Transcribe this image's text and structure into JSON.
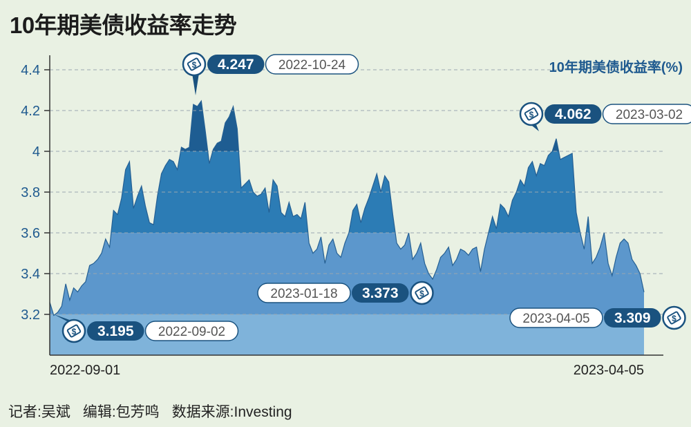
{
  "header": {
    "title": "10年期美债收益率走势"
  },
  "footer": {
    "reporter": "记者:吴斌",
    "editor": "编辑:包芳鸣",
    "source": "数据来源:Investing"
  },
  "colors": {
    "background": "#e9f1e3",
    "band_low": "#7fb3da",
    "band_mid": "#5c97cc",
    "band_high": "#2c7cb5",
    "band_top": "#1e5d92",
    "line": "#245f93",
    "axis_text": "#1f5a8f",
    "grid": "#9aa7b0",
    "badge": "#1a527f"
  },
  "chart_data": {
    "type": "area",
    "ylabel": "10年期美债收益率(%)",
    "ylim": [
      3.0,
      4.4
    ],
    "yticks": [
      3.2,
      3.4,
      3.6,
      3.8,
      4.0,
      4.2,
      4.4
    ],
    "ytick_labels": [
      "3.2",
      "3.4",
      "3.6",
      "3.8",
      "4",
      "4.2",
      "4.4"
    ],
    "x_start_label": "2022-09-01",
    "x_end_label": "2023-04-05",
    "bands": [
      3.2,
      3.6,
      4.0
    ],
    "grid": "horizontal dashed",
    "series": [
      {
        "values": [
          3.26,
          3.195,
          3.21,
          3.24,
          3.35,
          3.27,
          3.33,
          3.31,
          3.34,
          3.36,
          3.44,
          3.45,
          3.47,
          3.5,
          3.57,
          3.53,
          3.71,
          3.69,
          3.77,
          3.91,
          3.95,
          3.72,
          3.78,
          3.83,
          3.73,
          3.65,
          3.64,
          3.78,
          3.89,
          3.93,
          3.96,
          3.95,
          3.91,
          4.02,
          4.01,
          4.02,
          4.23,
          4.22,
          4.247,
          4.1,
          3.94,
          4.01,
          4.04,
          4.05,
          4.14,
          4.17,
          4.22,
          4.11,
          3.82,
          3.84,
          3.86,
          3.8,
          3.78,
          3.79,
          3.82,
          3.7,
          3.86,
          3.83,
          3.7,
          3.68,
          3.75,
          3.68,
          3.69,
          3.67,
          3.75,
          3.55,
          3.5,
          3.52,
          3.58,
          3.45,
          3.54,
          3.57,
          3.5,
          3.48,
          3.55,
          3.6,
          3.71,
          3.74,
          3.65,
          3.72,
          3.77,
          3.83,
          3.89,
          3.8,
          3.88,
          3.85,
          3.69,
          3.55,
          3.52,
          3.54,
          3.6,
          3.47,
          3.5,
          3.55,
          3.45,
          3.4,
          3.373,
          3.42,
          3.48,
          3.5,
          3.53,
          3.44,
          3.47,
          3.52,
          3.51,
          3.49,
          3.52,
          3.53,
          3.41,
          3.52,
          3.6,
          3.68,
          3.62,
          3.74,
          3.72,
          3.68,
          3.76,
          3.8,
          3.86,
          3.83,
          3.92,
          3.95,
          3.88,
          3.94,
          3.93,
          3.98,
          4.0,
          4.062,
          3.96,
          3.97,
          3.98,
          3.99,
          3.7,
          3.6,
          3.52,
          3.68,
          3.45,
          3.48,
          3.53,
          3.6,
          3.45,
          3.39,
          3.48,
          3.55,
          3.57,
          3.55,
          3.47,
          3.44,
          3.4,
          3.309
        ]
      }
    ],
    "annotations": [
      {
        "value": "4.247",
        "date": "2022-10-24",
        "kind": "high"
      },
      {
        "value": "3.195",
        "date": "2022-09-02",
        "kind": "low"
      },
      {
        "value": "4.062",
        "date": "2023-03-02",
        "kind": "high"
      },
      {
        "value": "3.373",
        "date": "2023-01-18",
        "kind": "low"
      },
      {
        "value": "3.309",
        "date": "2023-04-05",
        "kind": "end"
      }
    ]
  }
}
